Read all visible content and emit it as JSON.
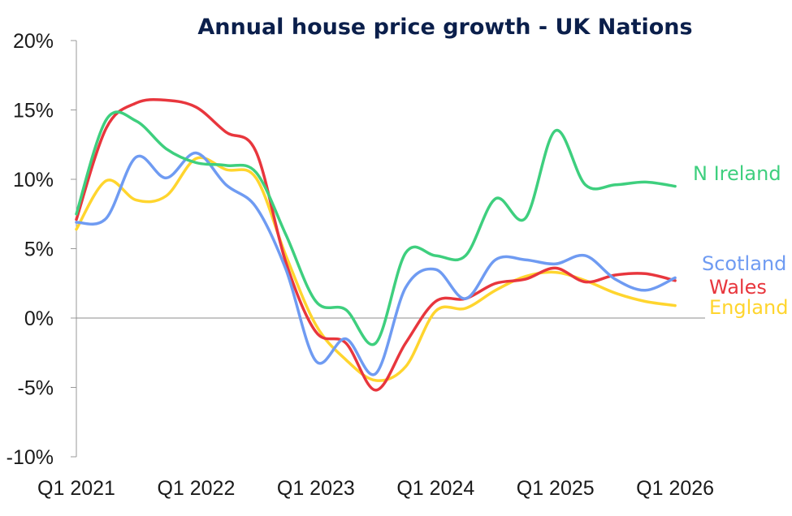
{
  "chart_data": {
    "type": "line",
    "title": "Annual house price growth - UK Nations",
    "xlabel": "",
    "ylabel": "",
    "ylim": [
      -10,
      20
    ],
    "yticks": [
      -10,
      -5,
      0,
      5,
      10,
      15,
      20
    ],
    "ytick_labels": [
      "-10%",
      "-5%",
      "0%",
      "5%",
      "10%",
      "15%",
      "20%"
    ],
    "xlim": [
      2021.0,
      2026.25
    ],
    "xticks": [
      2021,
      2022,
      2023,
      2024,
      2025,
      2026
    ],
    "xtick_labels": [
      "Q1 2021",
      "Q1 2022",
      "Q1 2023",
      "Q1 2024",
      "Q1 2025",
      "Q1 2026"
    ],
    "grid": false,
    "legend": "inline labels at line ends",
    "series": [
      {
        "name": "N Ireland",
        "color": "#3ecf7e",
        "points": [
          [
            2021.0,
            7.5
          ],
          [
            2021.25,
            14.3
          ],
          [
            2021.5,
            14.2
          ],
          [
            2021.75,
            12.2
          ],
          [
            2022.0,
            11.2
          ],
          [
            2022.25,
            11.0
          ],
          [
            2022.5,
            10.5
          ],
          [
            2022.75,
            6.0
          ],
          [
            2023.0,
            1.2
          ],
          [
            2023.25,
            0.6
          ],
          [
            2023.5,
            -1.8
          ],
          [
            2023.75,
            4.7
          ],
          [
            2024.0,
            4.5
          ],
          [
            2024.25,
            4.5
          ],
          [
            2024.5,
            8.6
          ],
          [
            2024.75,
            7.2
          ],
          [
            2025.0,
            13.5
          ],
          [
            2025.25,
            9.6
          ],
          [
            2025.5,
            9.6
          ],
          [
            2025.75,
            9.8
          ],
          [
            2026.0,
            9.5
          ]
        ]
      },
      {
        "name": "Scotland",
        "color": "#6f9bf2",
        "points": [
          [
            2021.0,
            6.9
          ],
          [
            2021.25,
            7.2
          ],
          [
            2021.5,
            11.6
          ],
          [
            2021.75,
            10.1
          ],
          [
            2022.0,
            11.9
          ],
          [
            2022.25,
            9.6
          ],
          [
            2022.5,
            8.0
          ],
          [
            2022.75,
            3.5
          ],
          [
            2023.0,
            -3.1
          ],
          [
            2023.25,
            -1.5
          ],
          [
            2023.5,
            -4.0
          ],
          [
            2023.75,
            2.2
          ],
          [
            2024.0,
            3.5
          ],
          [
            2024.25,
            1.4
          ],
          [
            2024.5,
            4.2
          ],
          [
            2024.75,
            4.2
          ],
          [
            2025.0,
            3.9
          ],
          [
            2025.25,
            4.5
          ],
          [
            2025.5,
            2.8
          ],
          [
            2025.75,
            2.0
          ],
          [
            2026.0,
            2.9
          ]
        ]
      },
      {
        "name": "Wales",
        "color": "#e8363d",
        "points": [
          [
            2021.0,
            7.1
          ],
          [
            2021.25,
            13.7
          ],
          [
            2021.5,
            15.5
          ],
          [
            2021.75,
            15.7
          ],
          [
            2022.0,
            15.2
          ],
          [
            2022.25,
            13.4
          ],
          [
            2022.5,
            12.0
          ],
          [
            2022.75,
            4.0
          ],
          [
            2023.0,
            -1.0
          ],
          [
            2023.25,
            -1.8
          ],
          [
            2023.5,
            -5.2
          ],
          [
            2023.75,
            -1.8
          ],
          [
            2024.0,
            1.2
          ],
          [
            2024.25,
            1.4
          ],
          [
            2024.5,
            2.5
          ],
          [
            2024.75,
            2.8
          ],
          [
            2025.0,
            3.6
          ],
          [
            2025.25,
            2.6
          ],
          [
            2025.5,
            3.1
          ],
          [
            2025.75,
            3.2
          ],
          [
            2026.0,
            2.7
          ]
        ]
      },
      {
        "name": "England",
        "color": "#ffd52e",
        "points": [
          [
            2021.0,
            6.4
          ],
          [
            2021.25,
            9.9
          ],
          [
            2021.5,
            8.5
          ],
          [
            2021.75,
            8.8
          ],
          [
            2022.0,
            11.5
          ],
          [
            2022.25,
            10.7
          ],
          [
            2022.5,
            10.1
          ],
          [
            2022.75,
            4.5
          ],
          [
            2023.0,
            -0.5
          ],
          [
            2023.25,
            -3.0
          ],
          [
            2023.5,
            -4.5
          ],
          [
            2023.75,
            -3.5
          ],
          [
            2024.0,
            0.5
          ],
          [
            2024.25,
            0.7
          ],
          [
            2024.5,
            2.0
          ],
          [
            2024.75,
            3.0
          ],
          [
            2025.0,
            3.3
          ],
          [
            2025.25,
            2.7
          ],
          [
            2025.5,
            1.8
          ],
          [
            2025.75,
            1.2
          ],
          [
            2026.0,
            0.9
          ]
        ]
      }
    ]
  }
}
